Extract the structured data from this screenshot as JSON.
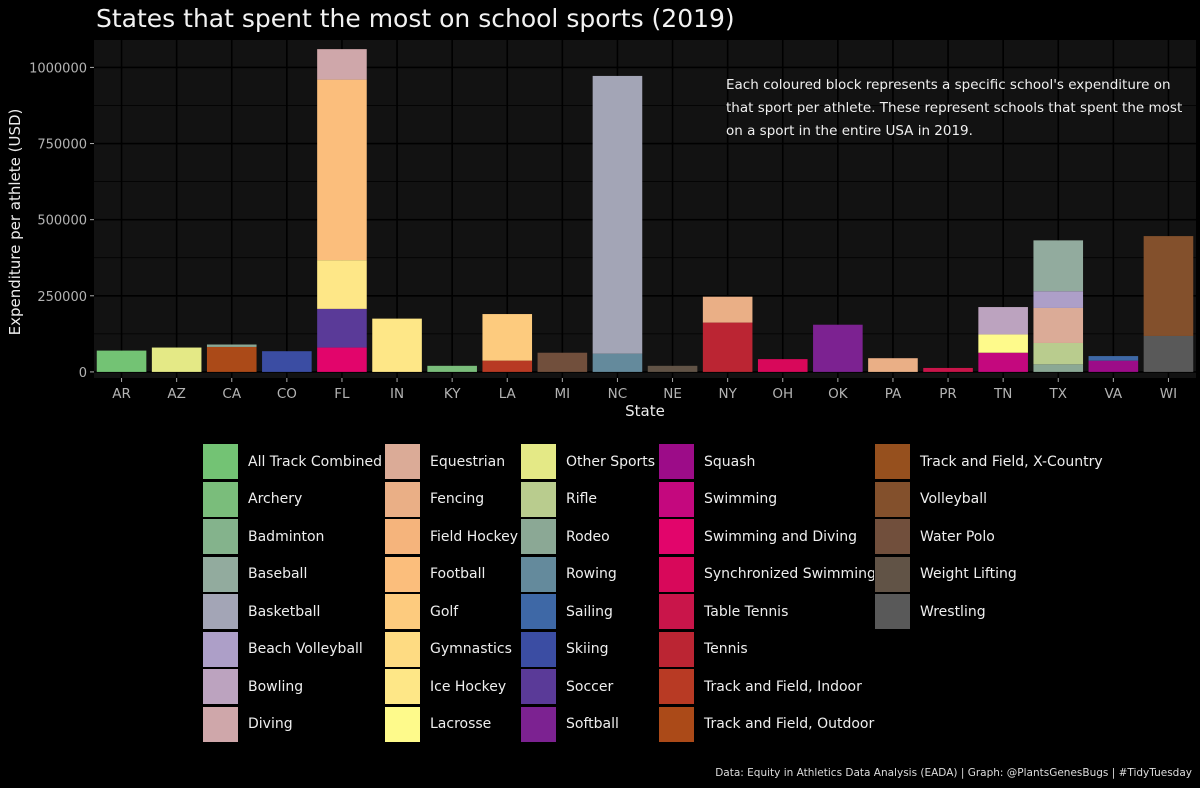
{
  "chart_data": {
    "type": "bar",
    "stacked": true,
    "title": "States that spent the most on school sports (2019)",
    "xlabel": "State",
    "ylabel": "Expenditure per athlete (USD)",
    "ylim": [
      -20000,
      1090000
    ],
    "yticks": [
      0,
      250000,
      500000,
      750000,
      1000000
    ],
    "ytick_labels": [
      "0",
      "250000",
      "500000",
      "750000",
      "1000000"
    ],
    "grid": true,
    "categories": [
      "AR",
      "AZ",
      "CA",
      "CO",
      "FL",
      "IN",
      "KY",
      "LA",
      "MI",
      "NC",
      "NE",
      "NY",
      "OH",
      "OK",
      "PA",
      "PR",
      "TN",
      "TX",
      "VA",
      "WI"
    ],
    "annotation": "Each coloured block represents a specific school's expenditure on that sport per athlete. These represent schools that spent the most on a sport in the entire USA in 2019.",
    "caption": "Data: Equity in Athletics Data Analysis (EADA) | Graph: @PlantsGenesBugs | #TidyTuesday",
    "legend_position": "bottom",
    "legend": [
      {
        "name": "All Track Combined",
        "color": "#73c374"
      },
      {
        "name": "Archery",
        "color": "#7abd7b"
      },
      {
        "name": "Badminton",
        "color": "#84b38c"
      },
      {
        "name": "Baseball",
        "color": "#92ab9e"
      },
      {
        "name": "Basketball",
        "color": "#a3a5b6"
      },
      {
        "name": "Beach Volleyball",
        "color": "#ad9fc8"
      },
      {
        "name": "Bowling",
        "color": "#bca3bf"
      },
      {
        "name": "Diving",
        "color": "#cfa7aa"
      },
      {
        "name": "Equestrian",
        "color": "#dbab97"
      },
      {
        "name": "Fencing",
        "color": "#eaaf86"
      },
      {
        "name": "Field Hockey",
        "color": "#f5b47c"
      },
      {
        "name": "Football",
        "color": "#fbbe7c"
      },
      {
        "name": "Golf",
        "color": "#fdcb7e"
      },
      {
        "name": "Gymnastics",
        "color": "#fedb82"
      },
      {
        "name": "Ice Hockey",
        "color": "#fee787"
      },
      {
        "name": "Lacrosse",
        "color": "#fefa8b"
      },
      {
        "name": "Other Sports",
        "color": "#e4e986"
      },
      {
        "name": "Rifle",
        "color": "#b9cc8e"
      },
      {
        "name": "Rodeo",
        "color": "#8ba895"
      },
      {
        "name": "Rowing",
        "color": "#648a9c"
      },
      {
        "name": "Sailing",
        "color": "#3e68a6"
      },
      {
        "name": "Skiing",
        "color": "#3b4da3"
      },
      {
        "name": "Soccer",
        "color": "#5a3a98"
      },
      {
        "name": "Softball",
        "color": "#7c2291"
      },
      {
        "name": "Squash",
        "color": "#9c0c88"
      },
      {
        "name": "Swimming",
        "color": "#c4087e"
      },
      {
        "name": "Swimming and Diving",
        "color": "#e2056b"
      },
      {
        "name": "Synchronized Swimming",
        "color": "#d8085a"
      },
      {
        "name": "Table Tennis",
        "color": "#c9154a"
      },
      {
        "name": "Tennis",
        "color": "#bb2533"
      },
      {
        "name": "Track and Field, Indoor",
        "color": "#b83a24"
      },
      {
        "name": "Track and Field, Outdoor",
        "color": "#ab4a18"
      },
      {
        "name": "Track and Field, X-Country",
        "color": "#96501e"
      },
      {
        "name": "Volleyball",
        "color": "#83502c"
      },
      {
        "name": "Water Polo",
        "color": "#714f3c"
      },
      {
        "name": "Weight Lifting",
        "color": "#615346"
      },
      {
        "name": "Wrestling",
        "color": "#595959"
      }
    ],
    "stacks": [
      {
        "state": "AR",
        "segments": [
          {
            "sport": "All Track Combined",
            "value": 70000
          }
        ]
      },
      {
        "state": "AZ",
        "segments": [
          {
            "sport": "Other Sports",
            "value": 80000
          }
        ]
      },
      {
        "state": "CA",
        "segments": [
          {
            "sport": "Track and Field, Outdoor",
            "value": 82000
          },
          {
            "sport": "Rodeo",
            "value": 8000
          }
        ]
      },
      {
        "state": "CO",
        "segments": [
          {
            "sport": "Skiing",
            "value": 68000
          }
        ]
      },
      {
        "state": "FL",
        "segments": [
          {
            "sport": "Swimming and Diving",
            "value": 80000
          },
          {
            "sport": "Soccer",
            "value": 127000
          },
          {
            "sport": "Ice Hockey",
            "value": 160000
          },
          {
            "sport": "Football",
            "value": 593000
          },
          {
            "sport": "Diving",
            "value": 100000
          }
        ]
      },
      {
        "state": "IN",
        "segments": [
          {
            "sport": "Ice Hockey",
            "value": 175000
          }
        ]
      },
      {
        "state": "KY",
        "segments": [
          {
            "sport": "Archery",
            "value": 20000
          }
        ]
      },
      {
        "state": "LA",
        "segments": [
          {
            "sport": "Track and Field, Indoor",
            "value": 37000
          },
          {
            "sport": "Golf",
            "value": 153000
          }
        ]
      },
      {
        "state": "MI",
        "segments": [
          {
            "sport": "Water Polo",
            "value": 63000
          }
        ]
      },
      {
        "state": "NC",
        "segments": [
          {
            "sport": "Rowing",
            "value": 60000
          },
          {
            "sport": "Basketball",
            "value": 912000
          }
        ]
      },
      {
        "state": "NE",
        "segments": [
          {
            "sport": "Weight Lifting",
            "value": 20000
          }
        ]
      },
      {
        "state": "NY",
        "segments": [
          {
            "sport": "Tennis",
            "value": 162000
          },
          {
            "sport": "Fencing",
            "value": 85000
          }
        ]
      },
      {
        "state": "OH",
        "segments": [
          {
            "sport": "Synchronized Swimming",
            "value": 42000
          }
        ]
      },
      {
        "state": "OK",
        "segments": [
          {
            "sport": "Softball",
            "value": 155000
          }
        ]
      },
      {
        "state": "PA",
        "segments": [
          {
            "sport": "Fencing",
            "value": 45000
          }
        ]
      },
      {
        "state": "PR",
        "segments": [
          {
            "sport": "Table Tennis",
            "value": 13000
          }
        ]
      },
      {
        "state": "TN",
        "segments": [
          {
            "sport": "Swimming",
            "value": 63000
          },
          {
            "sport": "Lacrosse",
            "value": 60000
          },
          {
            "sport": "Bowling",
            "value": 90000
          }
        ]
      },
      {
        "state": "TX",
        "segments": [
          {
            "sport": "Rodeo",
            "value": 25000
          },
          {
            "sport": "Rifle",
            "value": 70000
          },
          {
            "sport": "Equestrian",
            "value": 115000
          },
          {
            "sport": "Beach Volleyball",
            "value": 55000
          },
          {
            "sport": "Baseball",
            "value": 167000
          }
        ]
      },
      {
        "state": "VA",
        "segments": [
          {
            "sport": "Squash",
            "value": 37000
          },
          {
            "sport": "Sailing",
            "value": 15000
          }
        ]
      },
      {
        "state": "WI",
        "segments": [
          {
            "sport": "Wrestling",
            "value": 118000
          },
          {
            "sport": "Volleyball",
            "value": 328000
          }
        ]
      }
    ]
  }
}
